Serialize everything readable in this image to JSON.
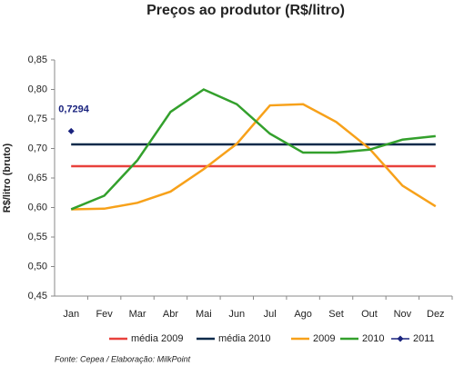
{
  "chart_data": {
    "type": "line",
    "title": "Preços ao produtor (R$/litro)",
    "y_label": "R$/litro (bruto)",
    "source": "Fonte: Cepea / Elaboração: MilkPoint",
    "categories": [
      "Jan",
      "Fev",
      "Mar",
      "Abr",
      "Mai",
      "Jun",
      "Jul",
      "Ago",
      "Set",
      "Out",
      "Nov",
      "Dez"
    ],
    "ylim": [
      0.45,
      0.85
    ],
    "yticks": [
      {
        "value": 0.45,
        "label": "0,45"
      },
      {
        "value": 0.5,
        "label": "0,50"
      },
      {
        "value": 0.55,
        "label": "0,55"
      },
      {
        "value": 0.6,
        "label": "0,60"
      },
      {
        "value": 0.65,
        "label": "0,65"
      },
      {
        "value": 0.7,
        "label": "0,70"
      },
      {
        "value": 0.75,
        "label": "0,75"
      },
      {
        "value": 0.8,
        "label": "0,80"
      },
      {
        "value": 0.85,
        "label": "0,85"
      }
    ],
    "grid": false,
    "legend": "bottom",
    "series": [
      {
        "name": "média 2009",
        "color": "#e8413c",
        "values": [
          0.67,
          0.67,
          0.67,
          0.67,
          0.67,
          0.67,
          0.67,
          0.67,
          0.67,
          0.67,
          0.67,
          0.67
        ]
      },
      {
        "name": "média 2010",
        "color": "#0b2a4a",
        "values": [
          0.707,
          0.707,
          0.707,
          0.707,
          0.707,
          0.707,
          0.707,
          0.707,
          0.707,
          0.707,
          0.707,
          0.707
        ]
      },
      {
        "name": "2009",
        "color": "#f7a11a",
        "values": [
          0.597,
          0.598,
          0.608,
          0.627,
          0.665,
          0.708,
          0.773,
          0.775,
          0.745,
          0.7,
          0.637,
          0.602
        ]
      },
      {
        "name": "2010",
        "color": "#33a02c",
        "values": [
          0.597,
          0.62,
          0.68,
          0.762,
          0.8,
          0.775,
          0.725,
          0.693,
          0.693,
          0.698,
          0.715,
          0.721
        ]
      },
      {
        "name": "2011",
        "color": "#1a237e",
        "marker": "diamond",
        "values": [
          0.7294,
          null,
          null,
          null,
          null,
          null,
          null,
          null,
          null,
          null,
          null,
          null
        ],
        "value_labels": [
          "0,7294",
          null,
          null,
          null,
          null,
          null,
          null,
          null,
          null,
          null,
          null,
          null
        ]
      }
    ]
  }
}
